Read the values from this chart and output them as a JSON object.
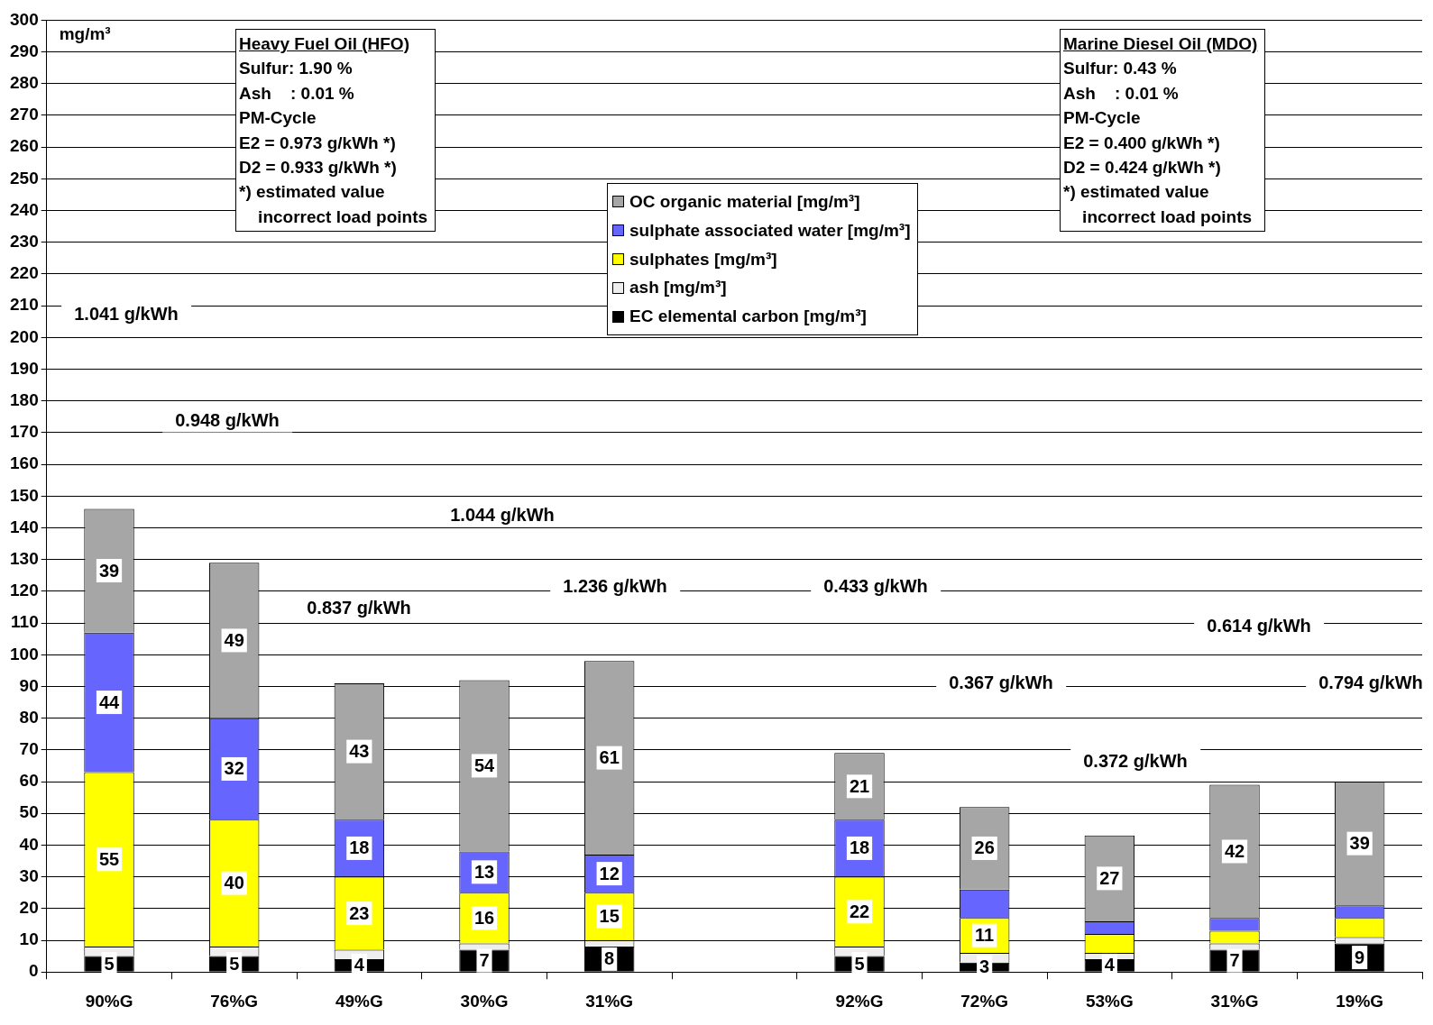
{
  "chart_data": {
    "type": "bar",
    "stacked": true,
    "ylabel": "mg/m³",
    "categories": [
      "90%G",
      "76%G",
      "49%G",
      "30%G",
      "31%G",
      null,
      "92%G",
      "72%G",
      "53%G",
      "31%G",
      "19%G"
    ],
    "series": [
      {
        "name": "EC elemental carbon [mg/m³]",
        "color": "#000000",
        "values": [
          5,
          5,
          4,
          7,
          8,
          null,
          5,
          3,
          4,
          7,
          9
        ],
        "value_labels": [
          "5",
          "5",
          "4",
          "7",
          "8",
          null,
          "5",
          "3",
          "4",
          "7",
          "9"
        ]
      },
      {
        "name": "ash [mg/m³]",
        "color": "#eeeeee",
        "values": [
          3,
          3,
          3,
          2,
          2,
          null,
          3,
          3,
          2,
          2,
          2
        ]
      },
      {
        "name": "sulphates [mg/m³]",
        "color": "#ffff00",
        "values": [
          55,
          40,
          23,
          16,
          15,
          null,
          22,
          11,
          6,
          4,
          6
        ],
        "value_labels": [
          "55",
          "40",
          "23",
          "16",
          "15",
          null,
          "22",
          "11",
          null,
          null,
          null
        ]
      },
      {
        "name": "sulphate associated water [mg/m³]",
        "color": "#6666ff",
        "values": [
          44,
          32,
          18,
          13,
          12,
          null,
          18,
          9,
          4,
          4,
          4
        ],
        "value_labels": [
          "44",
          "32",
          "18",
          "13",
          "12",
          null,
          "18",
          null,
          null,
          null,
          null
        ]
      },
      {
        "name": "OC organic material [mg/m³]",
        "color": "#a6a6a6",
        "values": [
          39,
          49,
          43,
          54,
          61,
          null,
          21,
          26,
          27,
          42,
          39
        ],
        "value_labels": [
          "39",
          "49",
          "43",
          "54",
          "61",
          null,
          "21",
          "26",
          "27",
          "42",
          "39"
        ]
      }
    ],
    "ylim": [
      0,
      300
    ],
    "yticks": [
      0,
      10,
      20,
      30,
      40,
      50,
      60,
      70,
      80,
      90,
      100,
      110,
      120,
      130,
      140,
      150,
      160,
      170,
      180,
      190,
      200,
      210,
      220,
      230,
      240,
      250,
      260,
      270,
      280,
      290,
      300
    ],
    "grid": "y",
    "legend": "top",
    "annotations": [
      "Heavy Fuel Oil (HFO)\nSulfur: 1.90 %\nAsh    : 0.01 %\nPM-Cycle\nE2 = 0.973 g/kWh *)\nD2 = 0.933 g/kWh *)\n*) estimated value\n    incorrect load points",
      "Marine Diesel Oil (MDO)\nSulfur: 0.43 %\nAsh    : 0.01 %\nPM-Cycle\nE2 = 0.400 g/kWh *)\nD2 = 0.424 g/kWh *)\n*) estimated value\n    incorrect load points",
      "1.041 g/kWh",
      "0.948 g/kWh",
      "0.837 g/kWh",
      "1.044 g/kWh",
      "1.236 g/kWh",
      "0.433 g/kWh",
      "0.367 g/kWh",
      "0.372 g/kWh",
      "0.614 g/kWh",
      "0.794 g/kWh"
    ]
  }
}
